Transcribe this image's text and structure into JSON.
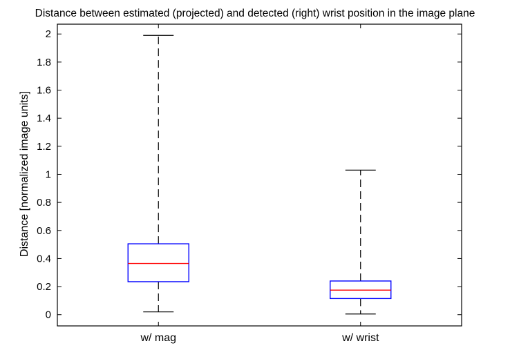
{
  "chart_data": {
    "type": "box",
    "title": "Distance between estimated (projected) and detected (right) wrist position in the image plane",
    "xlabel": "",
    "ylabel": "Distance [normalized image units]",
    "ylim": [
      -0.08,
      2.07
    ],
    "yticks": [
      0,
      0.2,
      0.4,
      0.6,
      0.8,
      1,
      1.2,
      1.4,
      1.6,
      1.8,
      2
    ],
    "categories": [
      "w/ mag",
      "w/ wrist"
    ],
    "boxes": [
      {
        "label": "w/ mag",
        "min": 0.02,
        "q1": 0.235,
        "median": 0.365,
        "q3": 0.505,
        "max": 1.99
      },
      {
        "label": "w/ wrist",
        "min": 0.005,
        "q1": 0.115,
        "median": 0.175,
        "q3": 0.24,
        "max": 1.03
      }
    ],
    "grid": false,
    "colors": {
      "box": "#0000ff",
      "median": "#ff0000",
      "whisker": "#000000"
    }
  }
}
